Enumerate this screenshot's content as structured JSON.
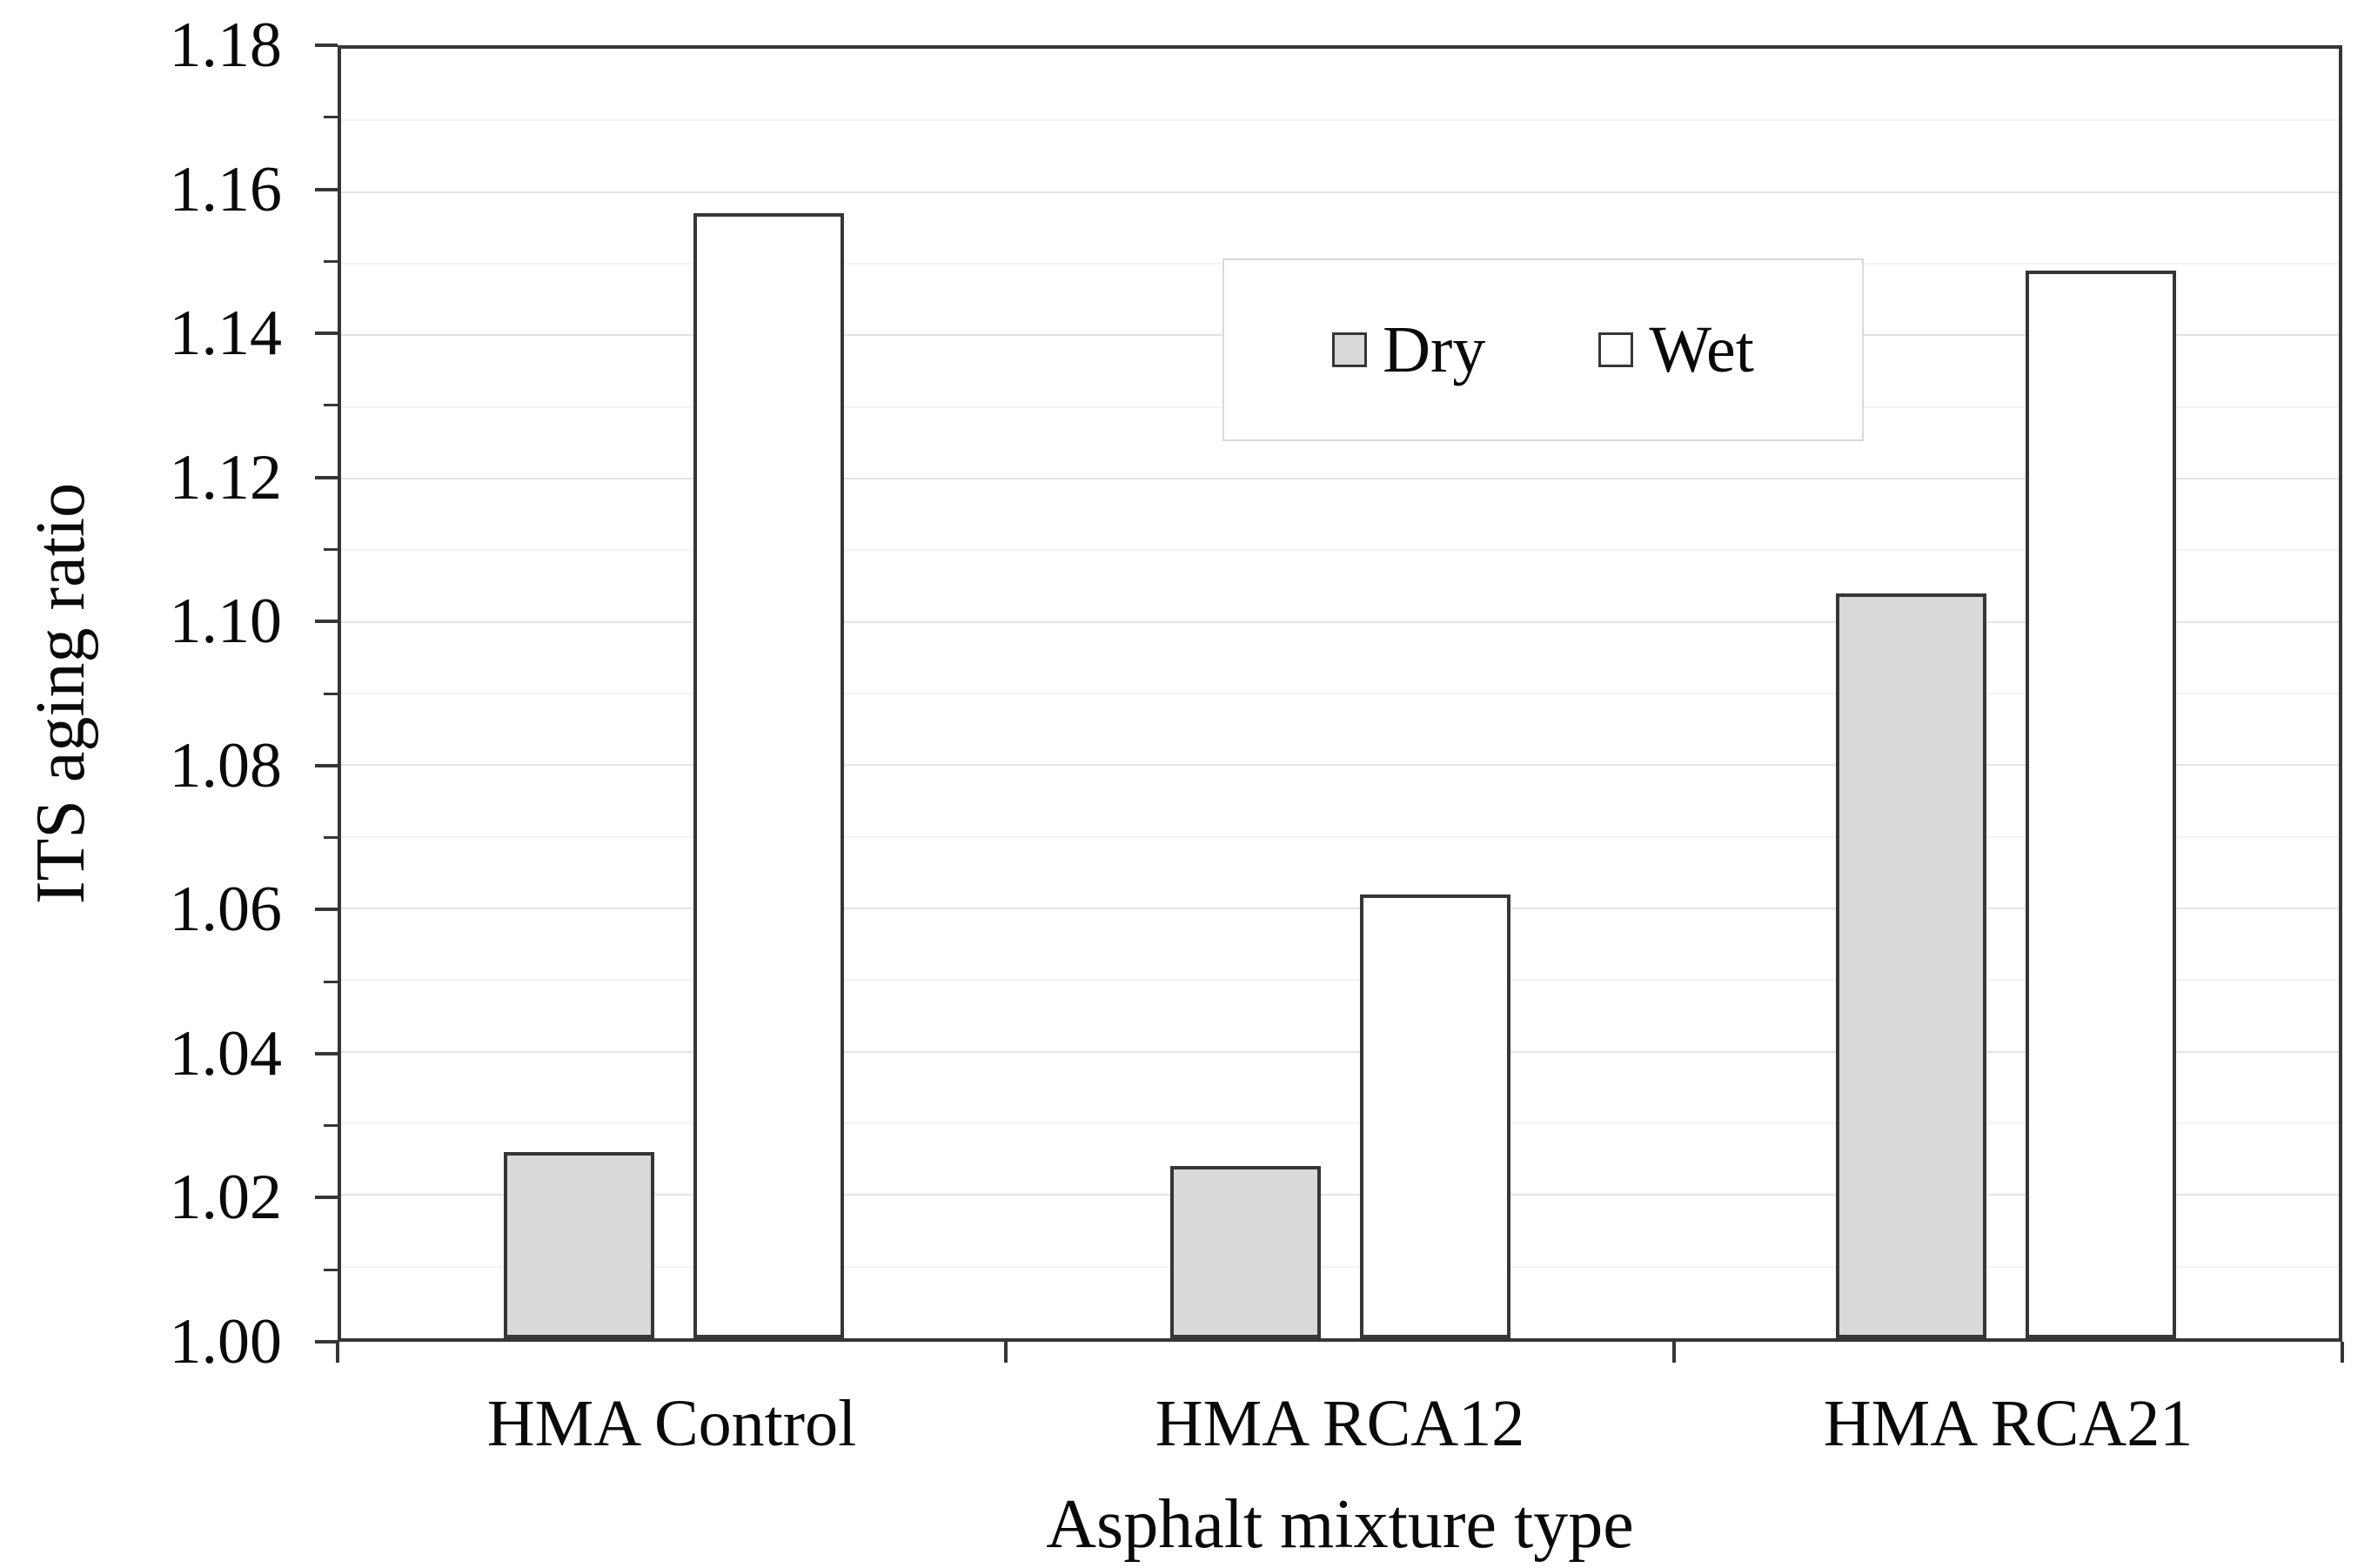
{
  "chart_data": {
    "type": "bar",
    "title": "",
    "categories": [
      "HMA Control",
      "HMA RCA12",
      "HMA RCA21"
    ],
    "series": [
      {
        "name": "Dry",
        "fill": "#d9d9d9",
        "values": [
          1.026,
          1.024,
          1.104
        ]
      },
      {
        "name": "Wet",
        "fill": "#ffffff",
        "values": [
          1.157,
          1.062,
          1.149
        ]
      }
    ],
    "xlabel": "Asphalt mixture type",
    "ylabel": "ITS aging ratio",
    "ylim": [
      1.0,
      1.18
    ],
    "y_major_step": 0.02,
    "y_minor_step": 0.01,
    "y_tick_labels": [
      "1.00",
      "1.02",
      "1.04",
      "1.06",
      "1.08",
      "1.10",
      "1.12",
      "1.14",
      "1.16",
      "1.18"
    ],
    "grid": "horizontal gridlines every 0.01, light gray",
    "legend_position": "inside plot, upper center-right",
    "axis_color": "#363636",
    "bar_border_color": "#363636",
    "gridline_major_color": "#e4e4e4",
    "gridline_minor_color": "#f3f3f3",
    "background_color": "#ffffff"
  }
}
